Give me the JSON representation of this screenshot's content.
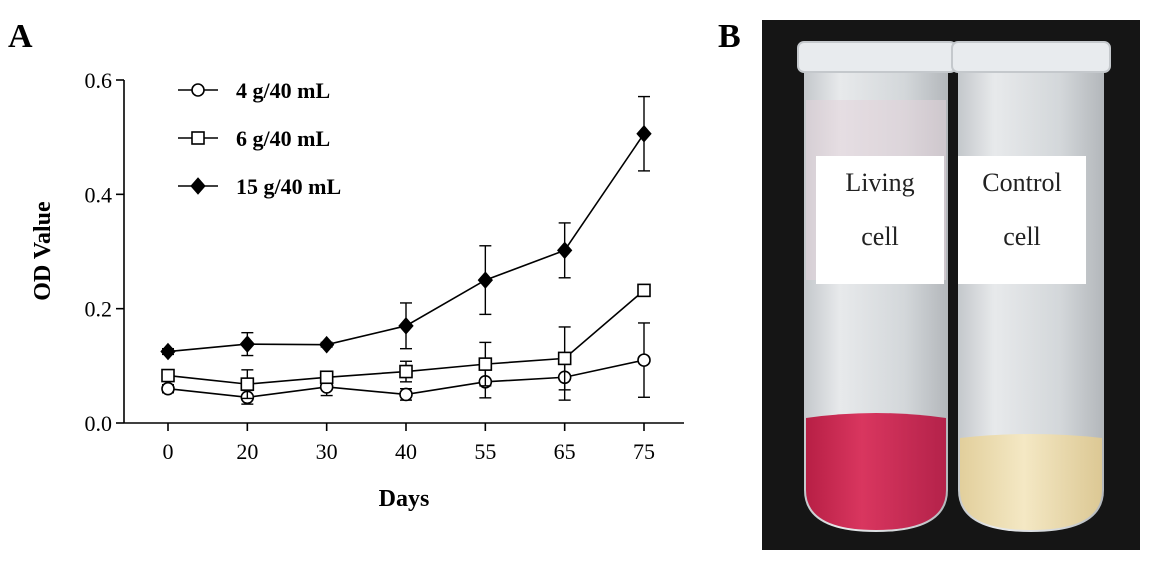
{
  "panels": {
    "a_label": "A",
    "b_label": "B"
  },
  "chart_data": {
    "type": "line",
    "xlabel": "Days",
    "ylabel": "OD Value",
    "categories": [
      "0",
      "20",
      "30",
      "40",
      "55",
      "65",
      "75"
    ],
    "ylim": [
      0,
      0.6
    ],
    "yticks": [
      "0.0",
      "0.2",
      "0.4",
      "0.6"
    ],
    "grid": false,
    "legend_position": "top-left",
    "series": [
      {
        "name": "4 g/40 mL",
        "marker": "circle-open",
        "values": [
          0.06,
          0.045,
          0.063,
          0.05,
          0.072,
          0.08,
          0.11
        ],
        "errors": [
          0.007,
          0.012,
          0.015,
          0.01,
          0.028,
          0.04,
          0.065
        ]
      },
      {
        "name": "6 g/40 mL",
        "marker": "square-open",
        "values": [
          0.083,
          0.068,
          0.08,
          0.09,
          0.103,
          0.113,
          0.232
        ],
        "errors": [
          0.005,
          0.025,
          0.008,
          0.018,
          0.038,
          0.055,
          0.008
        ]
      },
      {
        "name": "15 g/40 mL",
        "marker": "diamond-filled",
        "values": [
          0.125,
          0.138,
          0.137,
          0.17,
          0.25,
          0.302,
          0.506
        ],
        "errors": [
          0.005,
          0.02,
          0.004,
          0.04,
          0.06,
          0.048,
          0.065
        ]
      }
    ]
  },
  "photo": {
    "left_tube_label": [
      "Living",
      "cell"
    ],
    "right_tube_label": [
      "Control",
      "cell"
    ],
    "colors": {
      "background": "#151515",
      "living_liquid": "#cf2f55",
      "control_liquid": "#eedfb5",
      "tube": "#dfe3e6"
    }
  }
}
